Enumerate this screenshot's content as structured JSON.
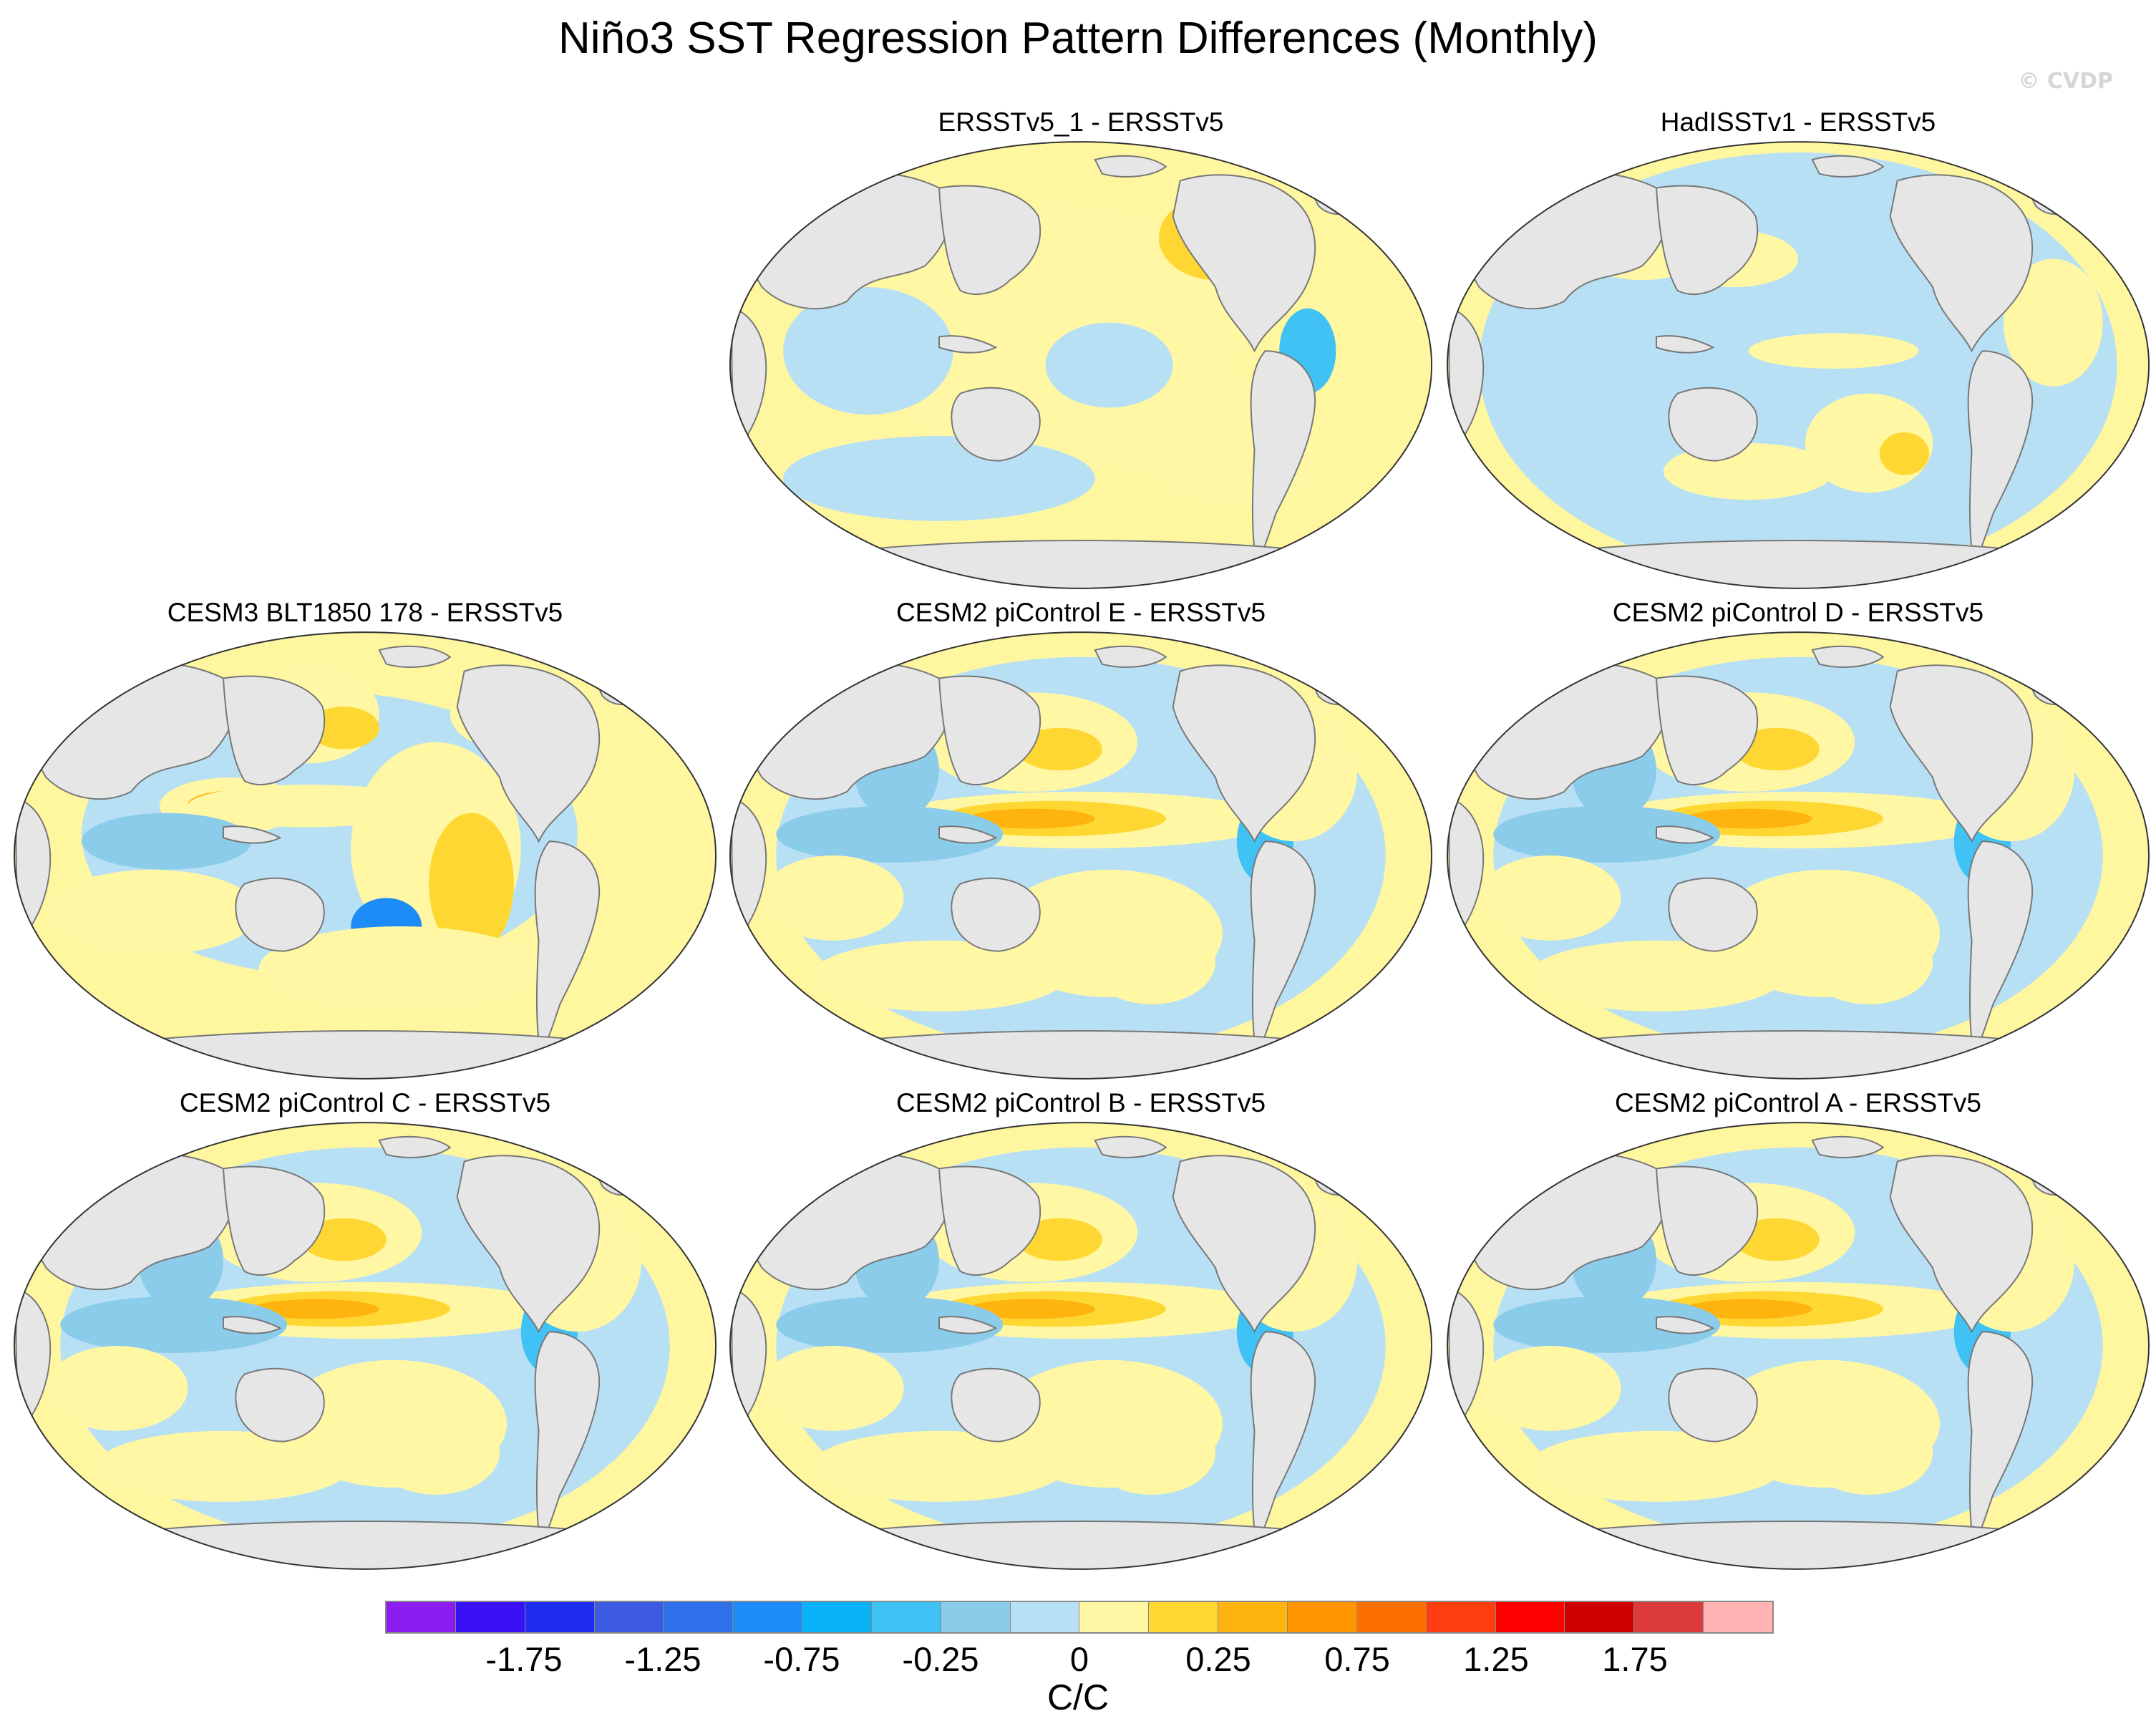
{
  "title": "Niño3 SST Regression Pattern Differences (Monthly)",
  "copyright": "© CVDP",
  "colors": {
    "land": "#e6e6e6",
    "coast": "#777777",
    "neutral_neg": "#bde0f3",
    "neutral_pos": "#fff6a0"
  },
  "panels": [
    {
      "id": "ersstv5-1",
      "title": "ERSSTv5_1 - ERSSTv5",
      "pattern": "yellow-pacific"
    },
    {
      "id": "hadisst",
      "title": "HadISSTv1 - ERSSTv5",
      "pattern": "mostly-blue"
    },
    {
      "id": "cesm3-blt",
      "title": "CESM3 BLT1850 178 - ERSSTv5",
      "pattern": "strong-warm"
    },
    {
      "id": "cesm2-e",
      "title": "CESM2 piControl E - ERSSTv5",
      "pattern": "equatorial-warm"
    },
    {
      "id": "cesm2-d",
      "title": "CESM2 piControl D - ERSSTv5",
      "pattern": "equatorial-warm"
    },
    {
      "id": "cesm2-c",
      "title": "CESM2 piControl C - ERSSTv5",
      "pattern": "equatorial-warm"
    },
    {
      "id": "cesm2-b",
      "title": "CESM2 piControl B - ERSSTv5",
      "pattern": "equatorial-warm"
    },
    {
      "id": "cesm2-a",
      "title": "CESM2 piControl A - ERSSTv5",
      "pattern": "equatorial-warm"
    }
  ],
  "colorbar": {
    "units": "C/C",
    "colors": [
      "#8b1df0",
      "#3a10f5",
      "#1f2bf0",
      "#3d5be0",
      "#2e70ea",
      "#1e8cf7",
      "#0ab3f7",
      "#40c2f4",
      "#8ccceb",
      "#b8e0f4",
      "#fff7a3",
      "#ffd733",
      "#ffb30f",
      "#ff9600",
      "#ff6e00",
      "#ff3d11",
      "#ff0000",
      "#cc0000",
      "#db3b3b",
      "#ffb3b3"
    ],
    "ticks": [
      "-1.75",
      "-1.25",
      "-0.75",
      "-0.25",
      "0",
      "0.25",
      "0.75",
      "1.25",
      "1.75"
    ]
  }
}
